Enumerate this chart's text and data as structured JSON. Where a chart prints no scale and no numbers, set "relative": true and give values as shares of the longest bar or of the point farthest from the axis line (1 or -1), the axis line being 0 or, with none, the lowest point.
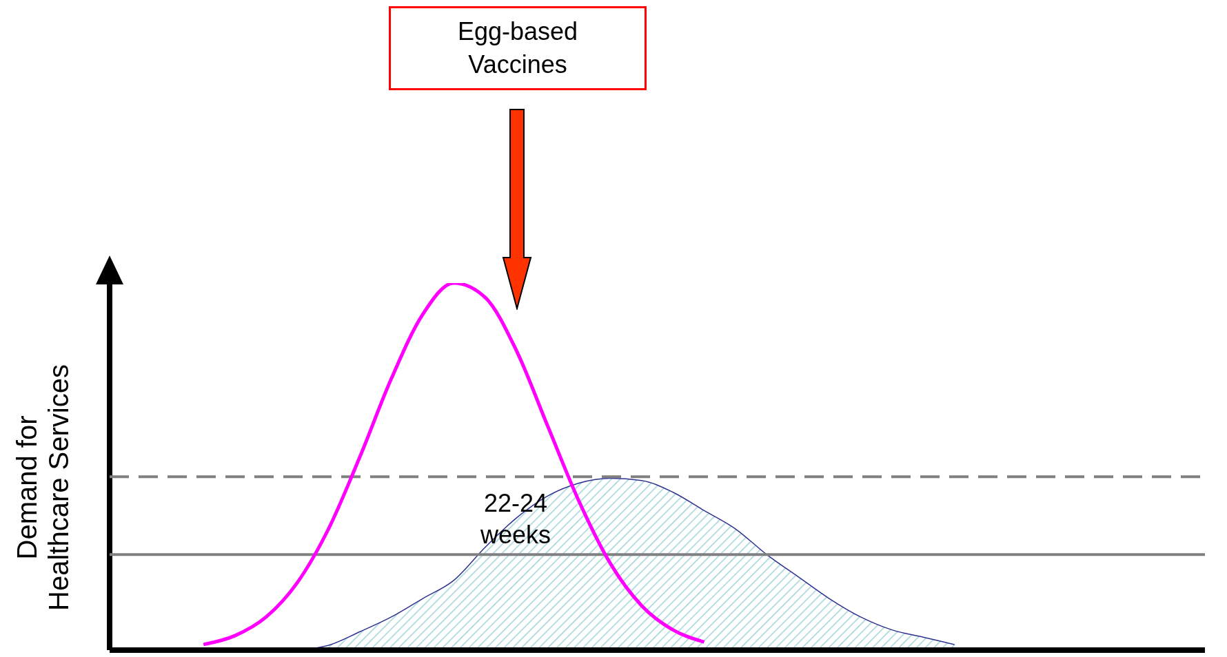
{
  "chart_data": {
    "type": "line",
    "relative": true,
    "ylabel": "Demand for Healthcare Services",
    "tick_labels": false,
    "categories": [
      null,
      null,
      null,
      null,
      null,
      null,
      null,
      null,
      null,
      null,
      null,
      null,
      null,
      null,
      null,
      null,
      null,
      null,
      null,
      null,
      null,
      null,
      null,
      null,
      null,
      null,
      null,
      null,
      null,
      null,
      null,
      null,
      null,
      null,
      null,
      null
    ],
    "series": [
      {
        "color": "#ff00ff",
        "values": [
          null,
          null,
          null,
          0.015,
          0.039,
          0.09,
          0.184,
          0.331,
          0.527,
          0.739,
          0.914,
          1,
          0.961,
          0.816,
          0.61,
          0.405,
          0.236,
          0.121,
          0.055,
          0.022,
          null,
          null,
          null,
          null,
          null,
          null,
          null,
          null,
          null,
          null,
          null,
          null,
          null,
          null,
          null,
          null
        ]
      },
      {
        "type": "area",
        "color": "#2e3192",
        "values": [
          null,
          null,
          null,
          null,
          null,
          null,
          0,
          0.013,
          0.05,
          0.09,
          0.14,
          0.19,
          0.28,
          0.36,
          0.42,
          0.455,
          0.468,
          0.462,
          0.43,
          0.38,
          0.33,
          0.26,
          0.2,
          0.14,
          0.09,
          0.055,
          0.035,
          0.015,
          null,
          null,
          null,
          null,
          null,
          null,
          null,
          null
        ]
      }
    ],
    "ref_lines": [
      {
        "axis": "y",
        "value": 0.472,
        "line_style": "dashed",
        "color": "#808080"
      },
      {
        "axis": "y",
        "value": 0.26,
        "line_style": "solid",
        "color": "#808080"
      }
    ],
    "annotations": [
      "Egg-based Vaccines",
      "22-24 weeks"
    ]
  }
}
